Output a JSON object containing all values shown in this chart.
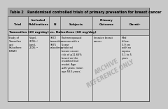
{
  "title": "Table 2   Randomized controlled trials of primary prevention for breast cancer",
  "col_headers_line1": [
    "",
    "Included",
    "",
    "",
    "Primary",
    ""
  ],
  "col_headers_line2": [
    "Trial",
    "Publications",
    "N",
    "Subjects",
    "Outcome",
    "Durati-"
  ],
  "subheader": "Tamoxifen (20 mg/day) vs. Raloxifene (60 mg/day)",
  "trial": "Study of\nTamoxifen\nand\nRaloxifene\n(STAR)",
  "publications": "Vogel,\n2006¹²;\nLand,\n2006.¹³",
  "n": "9872\ntamoxifen\n9875\nraloxifene",
  "subjects": "Postmenopausal\nwomen with a\n5-year\npredicted\nbreast cancer\nrisk of ≥11.66%\nbased on the\nmodified Gail\nmodel. Age\n≥35 years; mean\nage 58.5 years;",
  "outcome": "Invasive breast\ncancer",
  "duration": "Med\nfollow-\n3.9 yrs\nwith no\nexposu\n3.1 to 5\nyears",
  "bg_color": "#c8c8c8",
  "cell_bg": "#e8e8e8",
  "header_bg": "#b0b0b0",
  "text_color": "#000000",
  "border_color": "#555555",
  "watermark_color": "#888888",
  "watermark": "ARCHIVE\nREFERENCE ONLY",
  "title_bg": "#a0a0a0"
}
